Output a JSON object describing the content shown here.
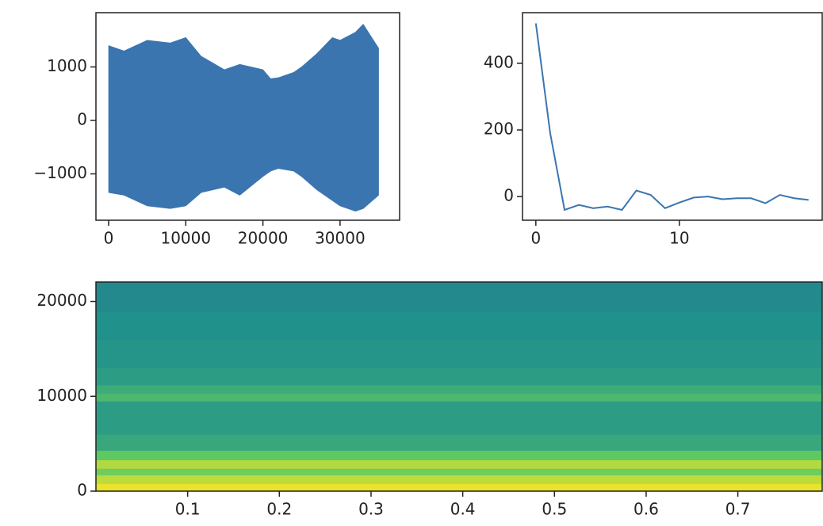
{
  "chart_data": [
    {
      "type": "area",
      "color": "#3a75b0",
      "x": [
        0,
        2000,
        5000,
        8000,
        10000,
        12000,
        15000,
        17000,
        20000,
        21000,
        22000,
        24000,
        25000,
        27000,
        28000,
        29000,
        30000,
        32000,
        33000,
        35000
      ],
      "upper": [
        1400,
        1300,
        1500,
        1450,
        1550,
        1200,
        950,
        1050,
        950,
        780,
        800,
        900,
        1000,
        1250,
        1400,
        1550,
        1500,
        1650,
        1800,
        1350
      ],
      "lower": [
        -1350,
        -1400,
        -1600,
        -1650,
        -1600,
        -1350,
        -1250,
        -1400,
        -1050,
        -950,
        -900,
        -950,
        -1050,
        -1300,
        -1400,
        -1500,
        -1600,
        -1700,
        -1650,
        -1400
      ],
      "xlim": [
        -1644,
        37718
      ],
      "ylim": [
        -1867,
        2015
      ],
      "xticks": [
        0,
        10000,
        20000,
        30000
      ],
      "yticks": [
        {
          "value": -1000,
          "label": "−1000"
        },
        0,
        1000
      ]
    },
    {
      "type": "line",
      "color": "#3a75b0",
      "x": [
        0,
        1,
        2,
        3,
        4,
        5,
        6,
        7,
        8,
        9,
        10,
        11,
        12,
        13,
        14,
        15,
        16,
        17,
        18,
        19
      ],
      "values": [
        520,
        190,
        -40,
        -25,
        -35,
        -30,
        -40,
        18,
        5,
        -35,
        -18,
        -3,
        0,
        -8,
        -5,
        -5,
        -20,
        5,
        -5,
        -10
      ],
      "xlim": [
        -0.93,
        19.95
      ],
      "ylim": [
        -71,
        552
      ],
      "xticks": [
        0,
        10
      ],
      "yticks": [
        0,
        200,
        400
      ]
    },
    {
      "type": "heatmap",
      "ybins": [
        0,
        800,
        1700,
        2400,
        3300,
        4300,
        6000,
        9500,
        10300,
        11200,
        13000,
        16000,
        19000,
        22050
      ],
      "values": [
        0.97,
        0.9,
        0.78,
        0.88,
        0.75,
        0.6,
        0.55,
        0.68,
        0.62,
        0.55,
        0.52,
        0.5,
        0.47
      ],
      "xlim": [
        0.0,
        0.792
      ],
      "ylim": [
        0,
        22050
      ],
      "xticks": [
        0.1,
        0.2,
        0.3,
        0.4,
        0.5,
        0.6,
        0.7
      ],
      "yticks": [
        0,
        10000,
        20000
      ]
    }
  ]
}
